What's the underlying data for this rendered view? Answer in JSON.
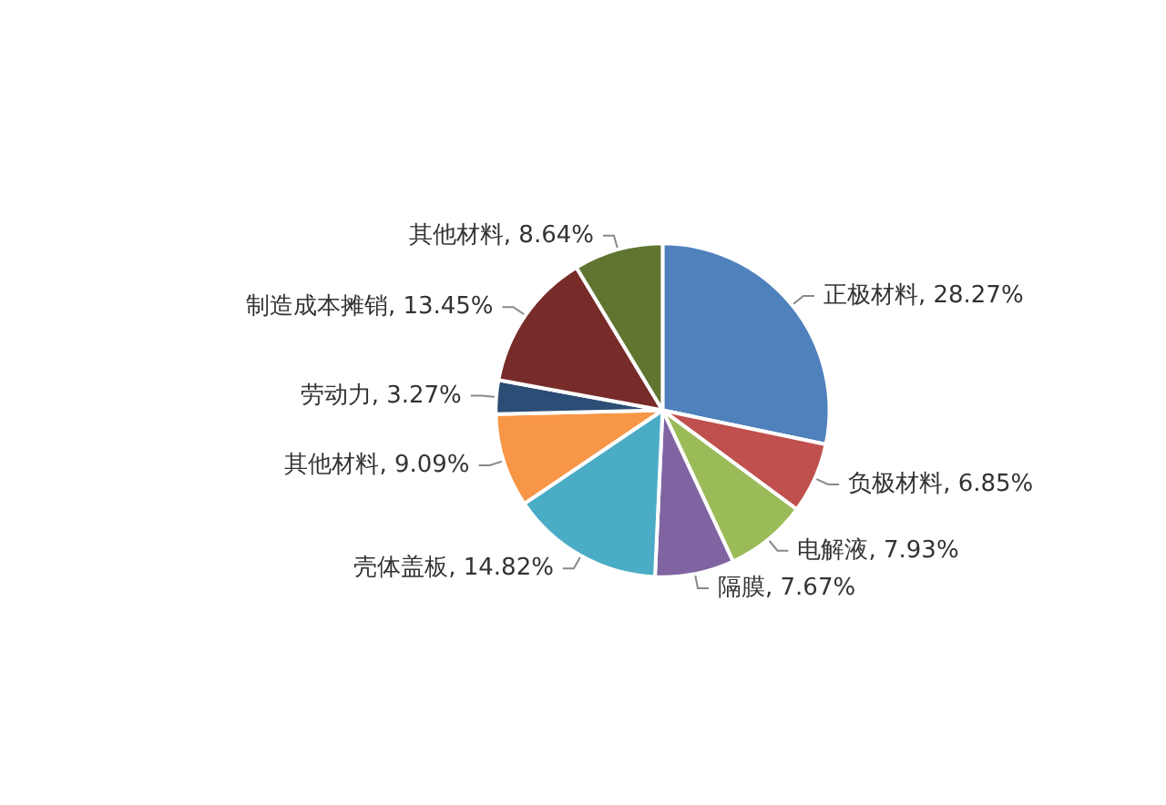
{
  "chart_data": {
    "type": "pie",
    "categories": [
      "正极材料",
      "负极材料",
      "电解液",
      "隔膜",
      "壳体盖板",
      "其他材料",
      "劳动力",
      "制造成本摊销",
      "其他材料"
    ],
    "values": [
      28.27,
      6.85,
      7.93,
      7.67,
      14.82,
      9.09,
      3.27,
      13.45,
      8.64
    ],
    "value_labels": [
      "28.27%",
      "6.85%",
      "7.93%",
      "7.67%",
      "14.82%",
      "9.09%",
      "3.27%",
      "13.45%",
      "8.64%"
    ],
    "colors": [
      "#4f81bd",
      "#c0504d",
      "#9bbb59",
      "#8064a2",
      "#4bacc6",
      "#f79646",
      "#2c4d75",
      "#772c2a",
      "#5f7530"
    ],
    "legend": false
  }
}
